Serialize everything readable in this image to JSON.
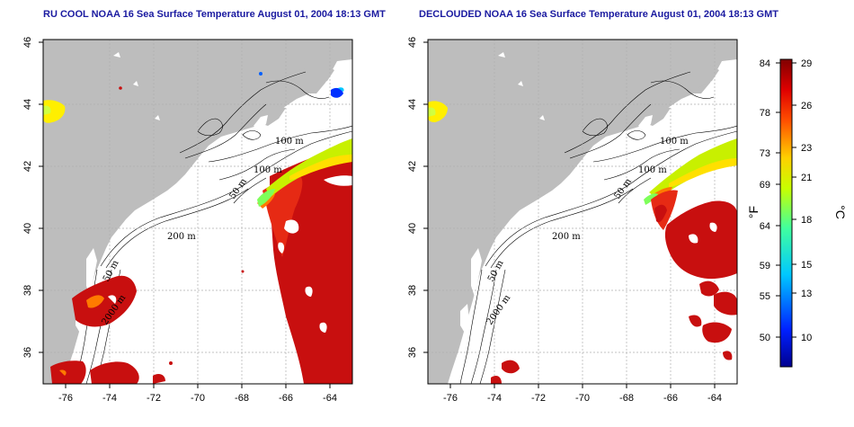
{
  "titles": {
    "left": "RU COOL NOAA 16 Sea Surface Temperature August 01, 2004 18:13 GMT",
    "right": "DECLOUDED NOAA 16 Sea Surface Temperature August 01, 2004 18:13 GMT"
  },
  "axes": {
    "x_ticks": [
      "-76",
      "-74",
      "-72",
      "-70",
      "-68",
      "-66",
      "-64"
    ],
    "y_ticks": [
      "46",
      "44",
      "42",
      "40",
      "38",
      "36"
    ]
  },
  "contour_labels": {
    "m100_a": "100 m",
    "m100_b": "100 m",
    "m50": "50 m",
    "m200": "200 m",
    "m50_south": "50 m",
    "m2000": "2000 m"
  },
  "colorbar": {
    "fahrenheit_ticks": [
      "84",
      "78",
      "73",
      "69",
      "64",
      "59",
      "55",
      "50"
    ],
    "celsius_ticks": [
      "29",
      "26",
      "23",
      "21",
      "18",
      "15",
      "13",
      "10"
    ],
    "fahrenheit_unit": "°F",
    "celsius_unit": "°C"
  },
  "colors": {
    "land": "#bdbdbd",
    "title": "#1a1aa0",
    "warm": "#c80f0f",
    "hot": "#e62a14"
  }
}
